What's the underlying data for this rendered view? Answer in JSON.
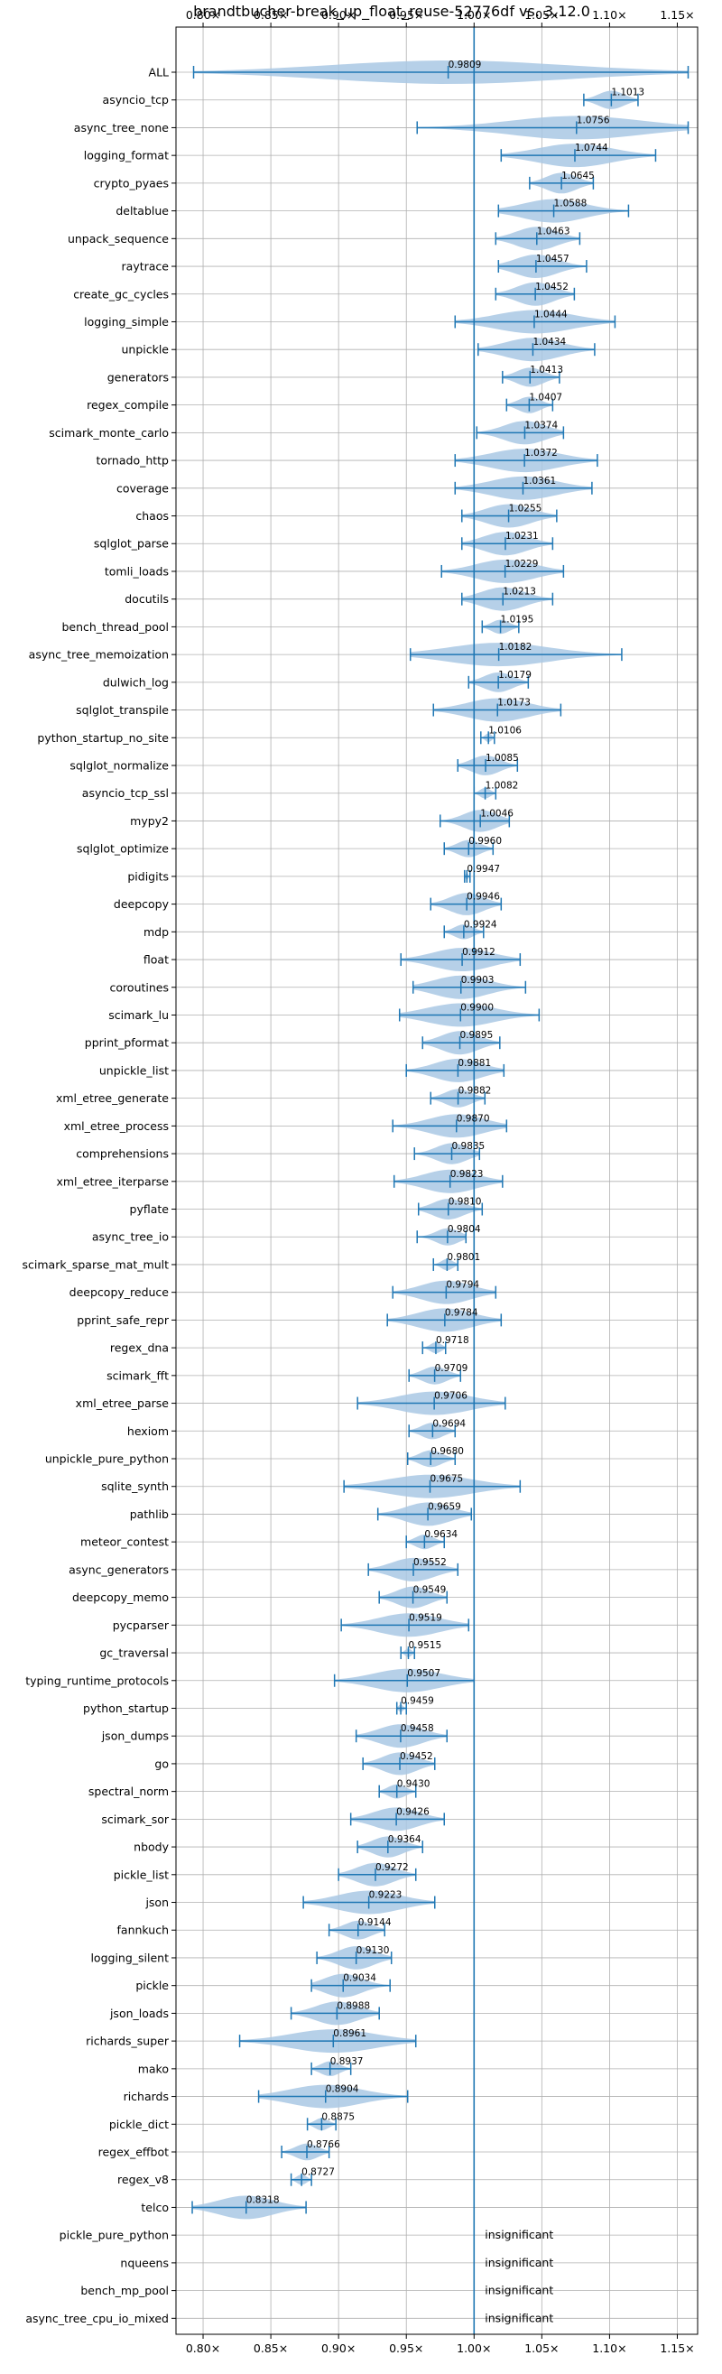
{
  "chart_data": {
    "type": "violin",
    "title": "brandtbucher-break_up_float_reuse-52776df vs. 3.12.0",
    "xlim": [
      0.78,
      1.165
    ],
    "xticks": [
      0.8,
      0.85,
      0.9,
      0.95,
      1.0,
      1.05,
      1.1,
      1.15
    ],
    "xtick_labels": [
      "0.80×",
      "0.85×",
      "0.90×",
      "0.95×",
      "1.00×",
      "1.05×",
      "1.10×",
      "1.15×"
    ],
    "reference_line": 1.0,
    "grid": true,
    "colors": {
      "violin": "#a9c8e4",
      "line": "#1f77b4",
      "grid": "#b0b0b0"
    },
    "benchmarks": [
      {
        "name": "ALL",
        "value": 0.9809,
        "label": "0.9809",
        "min": 0.793,
        "max": 1.158,
        "q1": 0.975,
        "q3": 1.013
      },
      {
        "name": "asyncio_tcp",
        "value": 1.1013,
        "label": "1.1013",
        "min": 1.081,
        "max": 1.121
      },
      {
        "name": "async_tree_none",
        "value": 1.0756,
        "label": "1.0756",
        "min": 0.958,
        "max": 1.158
      },
      {
        "name": "logging_format",
        "value": 1.0744,
        "label": "1.0744",
        "min": 1.02,
        "max": 1.134
      },
      {
        "name": "crypto_pyaes",
        "value": 1.0645,
        "label": "1.0645",
        "min": 1.041,
        "max": 1.088
      },
      {
        "name": "deltablue",
        "value": 1.0588,
        "label": "1.0588",
        "min": 1.018,
        "max": 1.114
      },
      {
        "name": "unpack_sequence",
        "value": 1.0463,
        "label": "1.0463",
        "min": 1.016,
        "max": 1.078
      },
      {
        "name": "raytrace",
        "value": 1.0457,
        "label": "1.0457",
        "min": 1.018,
        "max": 1.083
      },
      {
        "name": "create_gc_cycles",
        "value": 1.0452,
        "label": "1.0452",
        "min": 1.016,
        "max": 1.074
      },
      {
        "name": "logging_simple",
        "value": 1.0444,
        "label": "1.0444",
        "min": 0.986,
        "max": 1.104
      },
      {
        "name": "unpickle",
        "value": 1.0434,
        "label": "1.0434",
        "min": 1.003,
        "max": 1.089
      },
      {
        "name": "generators",
        "value": 1.0413,
        "label": "1.0413",
        "min": 1.021,
        "max": 1.063
      },
      {
        "name": "regex_compile",
        "value": 1.0407,
        "label": "1.0407",
        "min": 1.024,
        "max": 1.058
      },
      {
        "name": "scimark_monte_carlo",
        "value": 1.0374,
        "label": "1.0374",
        "min": 1.002,
        "max": 1.066
      },
      {
        "name": "tornado_http",
        "value": 1.0372,
        "label": "1.0372",
        "min": 0.986,
        "max": 1.091
      },
      {
        "name": "coverage",
        "value": 1.0361,
        "label": "1.0361",
        "min": 0.986,
        "max": 1.087
      },
      {
        "name": "chaos",
        "value": 1.0255,
        "label": "1.0255",
        "min": 0.991,
        "max": 1.061
      },
      {
        "name": "sqlglot_parse",
        "value": 1.0231,
        "label": "1.0231",
        "min": 0.991,
        "max": 1.058
      },
      {
        "name": "tomli_loads",
        "value": 1.0229,
        "label": "1.0229",
        "min": 0.976,
        "max": 1.066
      },
      {
        "name": "docutils",
        "value": 1.0213,
        "label": "1.0213",
        "min": 0.991,
        "max": 1.058
      },
      {
        "name": "bench_thread_pool",
        "value": 1.0195,
        "label": "1.0195",
        "min": 1.006,
        "max": 1.033
      },
      {
        "name": "async_tree_memoization",
        "value": 1.0182,
        "label": "1.0182",
        "min": 0.953,
        "max": 1.109
      },
      {
        "name": "dulwich_log",
        "value": 1.0179,
        "label": "1.0179",
        "min": 0.996,
        "max": 1.04
      },
      {
        "name": "sqlglot_transpile",
        "value": 1.0173,
        "label": "1.0173",
        "min": 0.97,
        "max": 1.064
      },
      {
        "name": "python_startup_no_site",
        "value": 1.0106,
        "label": "1.0106",
        "min": 1.005,
        "max": 1.015
      },
      {
        "name": "sqlglot_normalize",
        "value": 1.0085,
        "label": "1.0085",
        "min": 0.988,
        "max": 1.032
      },
      {
        "name": "asyncio_tcp_ssl",
        "value": 1.0082,
        "label": "1.0082",
        "min": 1.0,
        "max": 1.016
      },
      {
        "name": "mypy2",
        "value": 1.0046,
        "label": "1.0046",
        "min": 0.975,
        "max": 1.026
      },
      {
        "name": "sqlglot_optimize",
        "value": 0.996,
        "label": "0.9960",
        "min": 0.978,
        "max": 1.014
      },
      {
        "name": "pidigits",
        "value": 0.9947,
        "label": "0.9947",
        "min": 0.993,
        "max": 0.997
      },
      {
        "name": "deepcopy",
        "value": 0.9946,
        "label": "0.9946",
        "min": 0.968,
        "max": 1.02
      },
      {
        "name": "mdp",
        "value": 0.9924,
        "label": "0.9924",
        "min": 0.978,
        "max": 1.007
      },
      {
        "name": "float",
        "value": 0.9912,
        "label": "0.9912",
        "min": 0.946,
        "max": 1.034
      },
      {
        "name": "coroutines",
        "value": 0.9903,
        "label": "0.9903",
        "min": 0.955,
        "max": 1.038
      },
      {
        "name": "scimark_lu",
        "value": 0.99,
        "label": "0.9900",
        "min": 0.945,
        "max": 1.048
      },
      {
        "name": "pprint_pformat",
        "value": 0.9895,
        "label": "0.9895",
        "min": 0.962,
        "max": 1.019
      },
      {
        "name": "unpickle_list",
        "value": 0.9881,
        "label": "0.9881",
        "min": 0.95,
        "max": 1.022
      },
      {
        "name": "xml_etree_generate",
        "value": 0.9882,
        "label": "0.9882",
        "min": 0.968,
        "max": 1.008
      },
      {
        "name": "xml_etree_process",
        "value": 0.987,
        "label": "0.9870",
        "min": 0.94,
        "max": 1.024
      },
      {
        "name": "comprehensions",
        "value": 0.9835,
        "label": "0.9835",
        "min": 0.956,
        "max": 1.004
      },
      {
        "name": "xml_etree_iterparse",
        "value": 0.9823,
        "label": "0.9823",
        "min": 0.941,
        "max": 1.021
      },
      {
        "name": "pyflate",
        "value": 0.981,
        "label": "0.9810",
        "min": 0.959,
        "max": 1.006
      },
      {
        "name": "async_tree_io",
        "value": 0.9804,
        "label": "0.9804",
        "min": 0.958,
        "max": 0.994
      },
      {
        "name": "scimark_sparse_mat_mult",
        "value": 0.9801,
        "label": "0.9801",
        "min": 0.97,
        "max": 0.988
      },
      {
        "name": "deepcopy_reduce",
        "value": 0.9794,
        "label": "0.9794",
        "min": 0.94,
        "max": 1.016
      },
      {
        "name": "pprint_safe_repr",
        "value": 0.9784,
        "label": "0.9784",
        "min": 0.936,
        "max": 1.02
      },
      {
        "name": "regex_dna",
        "value": 0.9718,
        "label": "0.9718",
        "min": 0.962,
        "max": 0.979
      },
      {
        "name": "scimark_fft",
        "value": 0.9709,
        "label": "0.9709",
        "min": 0.952,
        "max": 0.99
      },
      {
        "name": "xml_etree_parse",
        "value": 0.9706,
        "label": "0.9706",
        "min": 0.914,
        "max": 1.023
      },
      {
        "name": "hexiom",
        "value": 0.9694,
        "label": "0.9694",
        "min": 0.952,
        "max": 0.986
      },
      {
        "name": "unpickle_pure_python",
        "value": 0.968,
        "label": "0.9680",
        "min": 0.951,
        "max": 0.986
      },
      {
        "name": "sqlite_synth",
        "value": 0.9675,
        "label": "0.9675",
        "min": 0.904,
        "max": 1.034
      },
      {
        "name": "pathlib",
        "value": 0.9659,
        "label": "0.9659",
        "min": 0.929,
        "max": 0.998
      },
      {
        "name": "meteor_contest",
        "value": 0.9634,
        "label": "0.9634",
        "min": 0.95,
        "max": 0.978
      },
      {
        "name": "async_generators",
        "value": 0.9552,
        "label": "0.9552",
        "min": 0.922,
        "max": 0.988
      },
      {
        "name": "deepcopy_memo",
        "value": 0.9549,
        "label": "0.9549",
        "min": 0.93,
        "max": 0.98
      },
      {
        "name": "pycparser",
        "value": 0.9519,
        "label": "0.9519",
        "min": 0.902,
        "max": 0.996
      },
      {
        "name": "gc_traversal",
        "value": 0.9515,
        "label": "0.9515",
        "min": 0.946,
        "max": 0.956
      },
      {
        "name": "typing_runtime_protocols",
        "value": 0.9507,
        "label": "0.9507",
        "min": 0.897,
        "max": 1.0
      },
      {
        "name": "python_startup",
        "value": 0.9459,
        "label": "0.9459",
        "min": 0.943,
        "max": 0.95
      },
      {
        "name": "json_dumps",
        "value": 0.9458,
        "label": "0.9458",
        "min": 0.913,
        "max": 0.98
      },
      {
        "name": "go",
        "value": 0.9452,
        "label": "0.9452",
        "min": 0.918,
        "max": 0.971
      },
      {
        "name": "spectral_norm",
        "value": 0.943,
        "label": "0.9430",
        "min": 0.93,
        "max": 0.957
      },
      {
        "name": "scimark_sor",
        "value": 0.9426,
        "label": "0.9426",
        "min": 0.909,
        "max": 0.978
      },
      {
        "name": "nbody",
        "value": 0.9364,
        "label": "0.9364",
        "min": 0.914,
        "max": 0.962
      },
      {
        "name": "pickle_list",
        "value": 0.9272,
        "label": "0.9272",
        "min": 0.9,
        "max": 0.957
      },
      {
        "name": "json",
        "value": 0.9223,
        "label": "0.9223",
        "min": 0.874,
        "max": 0.971
      },
      {
        "name": "fannkuch",
        "value": 0.9144,
        "label": "0.9144",
        "min": 0.893,
        "max": 0.934
      },
      {
        "name": "logging_silent",
        "value": 0.913,
        "label": "0.9130",
        "min": 0.884,
        "max": 0.939
      },
      {
        "name": "pickle",
        "value": 0.9034,
        "label": "0.9034",
        "min": 0.88,
        "max": 0.938
      },
      {
        "name": "json_loads",
        "value": 0.8988,
        "label": "0.8988",
        "min": 0.865,
        "max": 0.93
      },
      {
        "name": "richards_super",
        "value": 0.8961,
        "label": "0.8961",
        "min": 0.827,
        "max": 0.957
      },
      {
        "name": "mako",
        "value": 0.8937,
        "label": "0.8937",
        "min": 0.88,
        "max": 0.909
      },
      {
        "name": "richards",
        "value": 0.8904,
        "label": "0.8904",
        "min": 0.841,
        "max": 0.951
      },
      {
        "name": "pickle_dict",
        "value": 0.8875,
        "label": "0.8875",
        "min": 0.877,
        "max": 0.898
      },
      {
        "name": "regex_effbot",
        "value": 0.8766,
        "label": "0.8766",
        "min": 0.858,
        "max": 0.893
      },
      {
        "name": "regex_v8",
        "value": 0.8727,
        "label": "0.8727",
        "min": 0.865,
        "max": 0.88
      },
      {
        "name": "telco",
        "value": 0.8318,
        "label": "0.8318",
        "min": 0.792,
        "max": 0.876
      },
      {
        "name": "pickle_pure_python",
        "insignificant": true,
        "label": "insignificant"
      },
      {
        "name": "nqueens",
        "insignificant": true,
        "label": "insignificant"
      },
      {
        "name": "bench_mp_pool",
        "insignificant": true,
        "label": "insignificant"
      },
      {
        "name": "async_tree_cpu_io_mixed",
        "insignificant": true,
        "label": "insignificant"
      }
    ]
  }
}
